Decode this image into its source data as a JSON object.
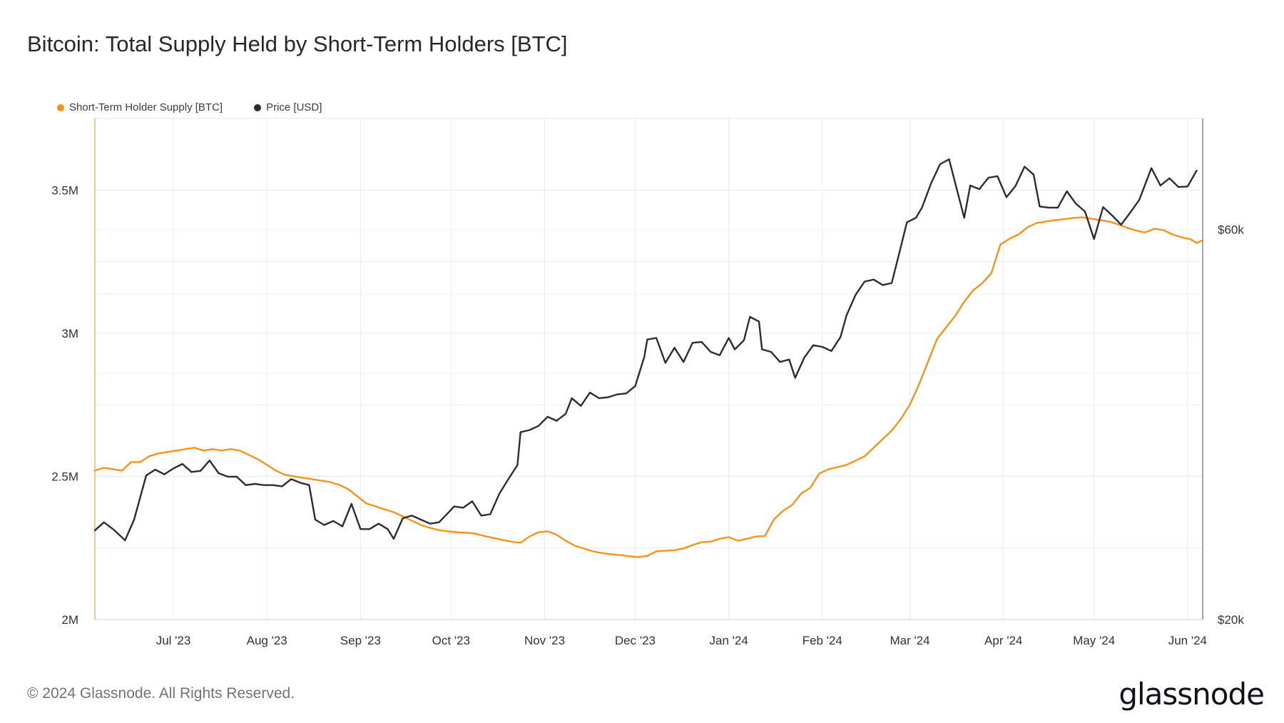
{
  "chart_data": {
    "type": "line",
    "title": "Bitcoin: Total Supply Held by Short-Term Holders [BTC]",
    "legend_placement": "top-left",
    "grid": true,
    "x_range": [
      "2023-06-05",
      "2024-06-06"
    ],
    "x_ticks": [
      {
        "date": "2023-07-01",
        "label": "Jul '23"
      },
      {
        "date": "2023-08-01",
        "label": "Aug '23"
      },
      {
        "date": "2023-09-01",
        "label": "Sep '23"
      },
      {
        "date": "2023-10-01",
        "label": "Oct '23"
      },
      {
        "date": "2023-11-01",
        "label": "Nov '23"
      },
      {
        "date": "2023-12-01",
        "label": "Dec '23"
      },
      {
        "date": "2024-01-01",
        "label": "Jan '24"
      },
      {
        "date": "2024-02-01",
        "label": "Feb '24"
      },
      {
        "date": "2024-03-01",
        "label": "Mar '24"
      },
      {
        "date": "2024-04-01",
        "label": "Apr '24"
      },
      {
        "date": "2024-05-01",
        "label": "May '24"
      },
      {
        "date": "2024-06-01",
        "label": "Jun '24"
      }
    ],
    "y_left": {
      "ylim": [
        2000000,
        3750000
      ],
      "ticks": [
        {
          "value": 2000000,
          "label": "2M"
        },
        {
          "value": 2500000,
          "label": "2.5M"
        },
        {
          "value": 3000000,
          "label": "3M"
        },
        {
          "value": 3500000,
          "label": "3.5M"
        }
      ]
    },
    "y_right": {
      "scale": "log",
      "ylim": [
        20000,
        82000
      ],
      "ticks": [
        {
          "value": 20000,
          "label": "$20k"
        },
        {
          "value": 60000,
          "label": "$60k"
        }
      ]
    },
    "series": [
      {
        "name": "Short-Term Holder Supply [BTC]",
        "axis": "left",
        "color": "#f7931a",
        "points": [
          [
            "2023-06-05",
            2520000
          ],
          [
            "2023-06-08",
            2530000
          ],
          [
            "2023-06-11",
            2525000
          ],
          [
            "2023-06-14",
            2520000
          ],
          [
            "2023-06-17",
            2550000
          ],
          [
            "2023-06-20",
            2550000
          ],
          [
            "2023-06-23",
            2570000
          ],
          [
            "2023-06-26",
            2580000
          ],
          [
            "2023-06-29",
            2585000
          ],
          [
            "2023-07-02",
            2590000
          ],
          [
            "2023-07-05",
            2595000
          ],
          [
            "2023-07-08",
            2600000
          ],
          [
            "2023-07-11",
            2590000
          ],
          [
            "2023-07-14",
            2595000
          ],
          [
            "2023-07-17",
            2590000
          ],
          [
            "2023-07-20",
            2595000
          ],
          [
            "2023-07-23",
            2590000
          ],
          [
            "2023-07-26",
            2575000
          ],
          [
            "2023-07-29",
            2560000
          ],
          [
            "2023-08-01",
            2540000
          ],
          [
            "2023-08-04",
            2520000
          ],
          [
            "2023-08-07",
            2505000
          ],
          [
            "2023-08-10",
            2500000
          ],
          [
            "2023-08-13",
            2495000
          ],
          [
            "2023-08-16",
            2490000
          ],
          [
            "2023-08-19",
            2485000
          ],
          [
            "2023-08-22",
            2480000
          ],
          [
            "2023-08-25",
            2470000
          ],
          [
            "2023-08-28",
            2455000
          ],
          [
            "2023-08-31",
            2430000
          ],
          [
            "2023-09-03",
            2405000
          ],
          [
            "2023-09-06",
            2395000
          ],
          [
            "2023-09-09",
            2385000
          ],
          [
            "2023-09-12",
            2375000
          ],
          [
            "2023-09-15",
            2360000
          ],
          [
            "2023-09-18",
            2345000
          ],
          [
            "2023-09-21",
            2330000
          ],
          [
            "2023-09-24",
            2320000
          ],
          [
            "2023-09-27",
            2312000
          ],
          [
            "2023-09-30",
            2308000
          ],
          [
            "2023-10-03",
            2305000
          ],
          [
            "2023-10-06",
            2303000
          ],
          [
            "2023-10-09",
            2300000
          ],
          [
            "2023-10-12",
            2292000
          ],
          [
            "2023-10-15",
            2285000
          ],
          [
            "2023-10-18",
            2278000
          ],
          [
            "2023-10-21",
            2272000
          ],
          [
            "2023-10-24",
            2268000
          ],
          [
            "2023-10-27",
            2290000
          ],
          [
            "2023-10-30",
            2305000
          ],
          [
            "2023-11-02",
            2308000
          ],
          [
            "2023-11-05",
            2296000
          ],
          [
            "2023-11-08",
            2275000
          ],
          [
            "2023-11-11",
            2258000
          ],
          [
            "2023-11-14",
            2248000
          ],
          [
            "2023-11-17",
            2238000
          ],
          [
            "2023-11-20",
            2232000
          ],
          [
            "2023-11-23",
            2228000
          ],
          [
            "2023-11-26",
            2225000
          ],
          [
            "2023-11-29",
            2221000
          ],
          [
            "2023-12-02",
            2218000
          ],
          [
            "2023-12-05",
            2222000
          ],
          [
            "2023-12-08",
            2238000
          ],
          [
            "2023-12-11",
            2240000
          ],
          [
            "2023-12-14",
            2242000
          ],
          [
            "2023-12-17",
            2248000
          ],
          [
            "2023-12-20",
            2260000
          ],
          [
            "2023-12-23",
            2270000
          ],
          [
            "2023-12-26",
            2272000
          ],
          [
            "2023-12-29",
            2282000
          ],
          [
            "2024-01-01",
            2288000
          ],
          [
            "2024-01-04",
            2275000
          ],
          [
            "2024-01-07",
            2282000
          ],
          [
            "2024-01-10",
            2290000
          ],
          [
            "2024-01-13",
            2292000
          ],
          [
            "2024-01-16",
            2350000
          ],
          [
            "2024-01-19",
            2380000
          ],
          [
            "2024-01-22",
            2400000
          ],
          [
            "2024-01-25",
            2440000
          ],
          [
            "2024-01-28",
            2460000
          ],
          [
            "2024-01-31",
            2510000
          ],
          [
            "2024-02-03",
            2525000
          ],
          [
            "2024-02-06",
            2532000
          ],
          [
            "2024-02-09",
            2540000
          ],
          [
            "2024-02-12",
            2555000
          ],
          [
            "2024-02-15",
            2570000
          ],
          [
            "2024-02-18",
            2600000
          ],
          [
            "2024-02-21",
            2630000
          ],
          [
            "2024-02-24",
            2660000
          ],
          [
            "2024-02-27",
            2700000
          ],
          [
            "2024-03-01",
            2750000
          ],
          [
            "2024-03-04",
            2820000
          ],
          [
            "2024-03-07",
            2900000
          ],
          [
            "2024-03-10",
            2980000
          ],
          [
            "2024-03-13",
            3020000
          ],
          [
            "2024-03-16",
            3060000
          ],
          [
            "2024-03-19",
            3110000
          ],
          [
            "2024-03-22",
            3150000
          ],
          [
            "2024-03-25",
            3175000
          ],
          [
            "2024-03-28",
            3210000
          ],
          [
            "2024-03-31",
            3310000
          ],
          [
            "2024-04-03",
            3330000
          ],
          [
            "2024-04-06",
            3345000
          ],
          [
            "2024-04-09",
            3370000
          ],
          [
            "2024-04-12",
            3385000
          ],
          [
            "2024-04-15",
            3390000
          ],
          [
            "2024-04-18",
            3395000
          ],
          [
            "2024-04-21",
            3398000
          ],
          [
            "2024-04-24",
            3402000
          ],
          [
            "2024-04-27",
            3405000
          ],
          [
            "2024-04-30",
            3400000
          ],
          [
            "2024-05-03",
            3395000
          ],
          [
            "2024-05-06",
            3390000
          ],
          [
            "2024-05-09",
            3380000
          ],
          [
            "2024-05-12",
            3368000
          ],
          [
            "2024-05-15",
            3358000
          ],
          [
            "2024-05-18",
            3352000
          ],
          [
            "2024-05-21",
            3365000
          ],
          [
            "2024-05-24",
            3360000
          ],
          [
            "2024-05-27",
            3345000
          ],
          [
            "2024-05-30",
            3335000
          ],
          [
            "2024-06-02",
            3328000
          ],
          [
            "2024-06-04",
            3315000
          ],
          [
            "2024-06-06",
            3325000
          ]
        ]
      },
      {
        "name": "Price [USD]",
        "axis": "right",
        "color": "#2b2d31",
        "points": [
          [
            "2023-06-05",
            25700
          ],
          [
            "2023-06-08",
            26300
          ],
          [
            "2023-06-11",
            25800
          ],
          [
            "2023-06-15",
            25000
          ],
          [
            "2023-06-18",
            26500
          ],
          [
            "2023-06-20",
            28200
          ],
          [
            "2023-06-22",
            30000
          ],
          [
            "2023-06-25",
            30500
          ],
          [
            "2023-06-28",
            30100
          ],
          [
            "2023-07-01",
            30600
          ],
          [
            "2023-07-04",
            31000
          ],
          [
            "2023-07-07",
            30300
          ],
          [
            "2023-07-10",
            30400
          ],
          [
            "2023-07-13",
            31300
          ],
          [
            "2023-07-16",
            30200
          ],
          [
            "2023-07-19",
            29900
          ],
          [
            "2023-07-22",
            29900
          ],
          [
            "2023-07-25",
            29200
          ],
          [
            "2023-07-28",
            29300
          ],
          [
            "2023-07-31",
            29200
          ],
          [
            "2023-08-03",
            29200
          ],
          [
            "2023-08-06",
            29100
          ],
          [
            "2023-08-09",
            29700
          ],
          [
            "2023-08-12",
            29400
          ],
          [
            "2023-08-15",
            29200
          ],
          [
            "2023-08-17",
            26500
          ],
          [
            "2023-08-20",
            26100
          ],
          [
            "2023-08-23",
            26400
          ],
          [
            "2023-08-26",
            26000
          ],
          [
            "2023-08-29",
            27700
          ],
          [
            "2023-09-01",
            25800
          ],
          [
            "2023-09-04",
            25800
          ],
          [
            "2023-09-07",
            26200
          ],
          [
            "2023-09-10",
            25800
          ],
          [
            "2023-09-12",
            25100
          ],
          [
            "2023-09-15",
            26600
          ],
          [
            "2023-09-18",
            26800
          ],
          [
            "2023-09-21",
            26500
          ],
          [
            "2023-09-24",
            26200
          ],
          [
            "2023-09-27",
            26300
          ],
          [
            "2023-09-30",
            27000
          ],
          [
            "2023-10-02",
            27500
          ],
          [
            "2023-10-05",
            27400
          ],
          [
            "2023-10-08",
            27900
          ],
          [
            "2023-10-11",
            26800
          ],
          [
            "2023-10-14",
            26900
          ],
          [
            "2023-10-17",
            28500
          ],
          [
            "2023-10-20",
            29700
          ],
          [
            "2023-10-23",
            30900
          ],
          [
            "2023-10-24",
            33900
          ],
          [
            "2023-10-27",
            34100
          ],
          [
            "2023-10-30",
            34500
          ],
          [
            "2023-11-02",
            35400
          ],
          [
            "2023-11-05",
            35000
          ],
          [
            "2023-11-08",
            35700
          ],
          [
            "2023-11-10",
            37300
          ],
          [
            "2023-11-13",
            36500
          ],
          [
            "2023-11-16",
            37900
          ],
          [
            "2023-11-19",
            37300
          ],
          [
            "2023-11-22",
            37400
          ],
          [
            "2023-11-25",
            37700
          ],
          [
            "2023-11-28",
            37800
          ],
          [
            "2023-12-01",
            38600
          ],
          [
            "2023-12-04",
            41900
          ],
          [
            "2023-12-05",
            44000
          ],
          [
            "2023-12-08",
            44200
          ],
          [
            "2023-12-11",
            41200
          ],
          [
            "2023-12-14",
            43000
          ],
          [
            "2023-12-17",
            41300
          ],
          [
            "2023-12-20",
            43600
          ],
          [
            "2023-12-23",
            43700
          ],
          [
            "2023-12-26",
            42500
          ],
          [
            "2023-12-29",
            42100
          ],
          [
            "2024-01-01",
            44200
          ],
          [
            "2024-01-03",
            42800
          ],
          [
            "2024-01-06",
            43900
          ],
          [
            "2024-01-08",
            46900
          ],
          [
            "2024-01-11",
            46300
          ],
          [
            "2024-01-12",
            42800
          ],
          [
            "2024-01-15",
            42500
          ],
          [
            "2024-01-18",
            41300
          ],
          [
            "2024-01-21",
            41600
          ],
          [
            "2024-01-23",
            39500
          ],
          [
            "2024-01-26",
            41800
          ],
          [
            "2024-01-29",
            43300
          ],
          [
            "2024-02-01",
            43100
          ],
          [
            "2024-02-04",
            42600
          ],
          [
            "2024-02-07",
            44300
          ],
          [
            "2024-02-09",
            47100
          ],
          [
            "2024-02-12",
            49900
          ],
          [
            "2024-02-15",
            51800
          ],
          [
            "2024-02-18",
            52100
          ],
          [
            "2024-02-21",
            51300
          ],
          [
            "2024-02-24",
            51600
          ],
          [
            "2024-02-27",
            57100
          ],
          [
            "2024-02-29",
            61200
          ],
          [
            "2024-03-03",
            62000
          ],
          [
            "2024-03-05",
            63800
          ],
          [
            "2024-03-08",
            68300
          ],
          [
            "2024-03-11",
            72100
          ],
          [
            "2024-03-14",
            73100
          ],
          [
            "2024-03-16",
            68400
          ],
          [
            "2024-03-19",
            62000
          ],
          [
            "2024-03-21",
            67900
          ],
          [
            "2024-03-24",
            67200
          ],
          [
            "2024-03-27",
            69400
          ],
          [
            "2024-03-30",
            69700
          ],
          [
            "2024-04-02",
            65700
          ],
          [
            "2024-04-05",
            67800
          ],
          [
            "2024-04-08",
            71600
          ],
          [
            "2024-04-11",
            70000
          ],
          [
            "2024-04-13",
            64000
          ],
          [
            "2024-04-16",
            63800
          ],
          [
            "2024-04-19",
            63800
          ],
          [
            "2024-04-22",
            66800
          ],
          [
            "2024-04-25",
            64500
          ],
          [
            "2024-04-28",
            63100
          ],
          [
            "2024-05-01",
            58400
          ],
          [
            "2024-05-04",
            63900
          ],
          [
            "2024-05-07",
            62400
          ],
          [
            "2024-05-10",
            60800
          ],
          [
            "2024-05-13",
            62900
          ],
          [
            "2024-05-16",
            65200
          ],
          [
            "2024-05-20",
            71300
          ],
          [
            "2024-05-23",
            67900
          ],
          [
            "2024-05-26",
            69300
          ],
          [
            "2024-05-29",
            67600
          ],
          [
            "2024-06-01",
            67700
          ],
          [
            "2024-06-04",
            70800
          ]
        ]
      }
    ]
  },
  "footer": {
    "copyright": "© 2024 Glassnode. All Rights Reserved.",
    "logo_text": "glassnode"
  }
}
